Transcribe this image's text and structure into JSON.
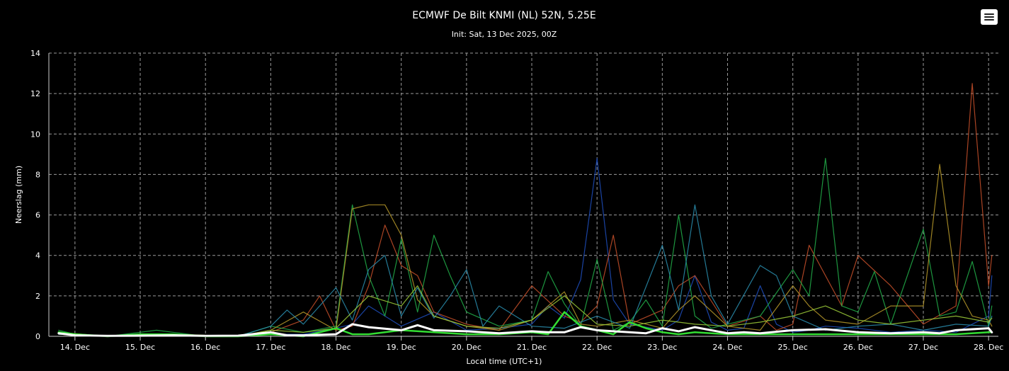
{
  "chart_data": {
    "type": "line",
    "title": "ECMWF De Bilt KNMI (NL) 52N, 5.25E",
    "subtitle": "Init: Sat, 13 Dec 2025, 00Z",
    "xlabel": "Local time (UTC+1)",
    "ylabel": "Neerslag (mm)",
    "x_tick_labels": [
      "14. Dec",
      "15. Dec",
      "16. Dec",
      "17. Dec",
      "18. Dec",
      "19. Dec",
      "20. Dec",
      "21. Dec",
      "22. Dec",
      "23. Dec",
      "24. Dec",
      "25. Dec",
      "26. Dec",
      "27. Dec",
      "28. Dec"
    ],
    "y_tick_labels": [
      "0",
      "2",
      "4",
      "6",
      "8",
      "10",
      "12",
      "14"
    ],
    "ylim": [
      0,
      14
    ],
    "xlim_days": [
      13.6,
      28.15
    ],
    "grid": true,
    "legend": "none",
    "background": "#000000",
    "series": [
      {
        "color": "#1f4fbf",
        "days": [
          13.75,
          14.5,
          15.5,
          16.5,
          17.0,
          17.5,
          18.0,
          18.25,
          18.5,
          19.0,
          19.5,
          20.0,
          20.5,
          21.0,
          21.25,
          21.5,
          21.75,
          22.0,
          22.25,
          22.5,
          23.0,
          23.25,
          23.5,
          23.75,
          24.0,
          24.25,
          24.5,
          24.75,
          25.0,
          25.25,
          25.5,
          26.0,
          26.5,
          27.0,
          27.5,
          28.0,
          28.05
        ],
        "values": [
          0.1,
          0,
          0,
          0,
          0.1,
          0.1,
          0.4,
          0.6,
          1.5,
          0.5,
          1.2,
          0.3,
          0.4,
          0.6,
          1.5,
          0.9,
          2.8,
          8.8,
          1.8,
          0.6,
          0.3,
          0.8,
          3.0,
          0.7,
          0.3,
          0.4,
          2.5,
          0.6,
          0.2,
          0.3,
          0.5,
          0.4,
          0.2,
          0.3,
          0.2,
          1.0,
          3.0
        ]
      },
      {
        "color": "#c8502a",
        "days": [
          13.75,
          14.5,
          15.5,
          16.5,
          17.0,
          17.5,
          17.75,
          18.0,
          18.25,
          18.5,
          18.75,
          19.0,
          19.25,
          19.5,
          20.0,
          20.5,
          21.0,
          21.5,
          21.75,
          22.0,
          22.25,
          22.5,
          23.0,
          23.25,
          23.5,
          24.0,
          24.5,
          24.75,
          25.0,
          25.25,
          25.5,
          25.75,
          26.0,
          26.5,
          27.0,
          27.5,
          27.75,
          28.0,
          28.05
        ],
        "values": [
          0.1,
          0,
          0,
          0,
          0.2,
          0.8,
          2.0,
          0.3,
          0.5,
          2.5,
          5.5,
          3.5,
          3.0,
          1.2,
          0.6,
          0.3,
          2.5,
          1.0,
          0.7,
          1.5,
          5.0,
          0.6,
          1.3,
          2.5,
          3.0,
          0.5,
          1.0,
          0.3,
          0.6,
          4.5,
          3.0,
          1.5,
          4.0,
          2.5,
          0.6,
          1.5,
          12.5,
          2.5,
          4.0
        ]
      },
      {
        "color": "#22b04a",
        "days": [
          13.75,
          14.0,
          14.5,
          15.0,
          15.25,
          15.5,
          16.0,
          16.5,
          17.0,
          17.5,
          18.0,
          18.25,
          18.5,
          18.75,
          19.0,
          19.25,
          19.5,
          19.75,
          20.0,
          20.5,
          21.0,
          21.25,
          21.5,
          21.75,
          22.0,
          22.25,
          22.5,
          22.75,
          23.0,
          23.25,
          23.5,
          23.75,
          24.0,
          24.5,
          25.0,
          25.25,
          25.5,
          25.75,
          26.0,
          26.25,
          26.5,
          27.0,
          27.25,
          27.5,
          27.75,
          28.0,
          28.05
        ],
        "values": [
          0.3,
          0.1,
          0,
          0.2,
          0.3,
          0.2,
          0,
          0,
          0.5,
          0.2,
          0.5,
          6.5,
          3.0,
          1.0,
          4.8,
          1.2,
          5.0,
          3.0,
          1.2,
          0.5,
          0.8,
          3.2,
          1.6,
          0.5,
          3.8,
          0.3,
          0.7,
          1.8,
          0.5,
          6.0,
          1.0,
          0.4,
          0.6,
          1.0,
          3.3,
          2.0,
          8.8,
          1.5,
          1.2,
          3.2,
          0.6,
          5.3,
          1.0,
          1.2,
          3.7,
          0.5,
          1.5
        ]
      },
      {
        "color": "#b89a2a",
        "days": [
          13.75,
          14.5,
          15.5,
          16.5,
          17.0,
          17.5,
          18.0,
          18.25,
          18.5,
          18.75,
          19.0,
          19.25,
          19.5,
          20.0,
          20.5,
          21.0,
          21.25,
          21.5,
          21.75,
          22.0,
          22.5,
          23.0,
          23.25,
          23.5,
          24.0,
          24.5,
          25.0,
          25.25,
          25.5,
          26.0,
          26.5,
          27.0,
          27.25,
          27.5,
          27.75,
          28.0,
          28.05
        ],
        "values": [
          0.1,
          0,
          0,
          0,
          0.3,
          1.2,
          0.3,
          6.3,
          6.5,
          6.5,
          5.0,
          1.8,
          1.0,
          0.5,
          0.3,
          0.8,
          1.5,
          2.2,
          0.6,
          0.5,
          0.8,
          0.4,
          1.3,
          2.0,
          0.5,
          0.3,
          2.5,
          1.5,
          0.8,
          0.6,
          1.5,
          1.5,
          8.5,
          2.5,
          1.0,
          0.8,
          0.5
        ]
      },
      {
        "color": "#2a8fb0",
        "days": [
          13.75,
          14.5,
          15.5,
          16.5,
          17.0,
          17.25,
          17.5,
          18.0,
          18.25,
          18.5,
          18.75,
          19.0,
          19.25,
          19.5,
          19.75,
          20.0,
          20.25,
          20.5,
          21.0,
          21.5,
          22.0,
          22.5,
          23.0,
          23.25,
          23.5,
          23.75,
          24.0,
          24.5,
          24.75,
          25.0,
          25.5,
          26.0,
          26.5,
          27.0,
          27.5,
          28.0,
          28.05
        ],
        "values": [
          0.1,
          0,
          0,
          0,
          0.5,
          1.3,
          0.6,
          2.4,
          0.8,
          3.3,
          4.0,
          1.0,
          2.4,
          0.9,
          2.0,
          3.3,
          0.5,
          1.5,
          0.5,
          0.4,
          1.0,
          0.4,
          4.5,
          1.3,
          6.5,
          2.0,
          0.6,
          3.5,
          3.0,
          1.0,
          0.3,
          0.5,
          0.6,
          0.3,
          0.6,
          0.5,
          1.0
        ]
      },
      {
        "color": "#9fcf3a",
        "days": [
          13.75,
          14.5,
          15.5,
          16.5,
          17.0,
          17.5,
          18.0,
          18.5,
          19.0,
          19.25,
          19.5,
          20.0,
          20.5,
          21.0,
          21.5,
          22.0,
          22.5,
          23.0,
          23.5,
          24.0,
          24.5,
          25.0,
          25.5,
          26.0,
          26.5,
          27.0,
          27.5,
          28.0,
          28.05
        ],
        "values": [
          0.2,
          0,
          0.1,
          0,
          0.3,
          0.2,
          0.4,
          2.0,
          1.5,
          2.5,
          1.0,
          0.5,
          0.4,
          0.8,
          2.0,
          0.6,
          0.5,
          0.8,
          0.6,
          0.5,
          0.7,
          1.0,
          1.5,
          0.8,
          0.6,
          0.8,
          1.0,
          0.7,
          0.9
        ]
      },
      {
        "color": "#33dd33",
        "days": [
          13.75,
          14.0,
          14.5,
          15.0,
          15.5,
          16.0,
          16.5,
          17.0,
          17.5,
          18.0,
          18.25,
          18.5,
          19.0,
          19.5,
          20.0,
          20.5,
          21.0,
          21.25,
          21.5,
          21.75,
          22.0,
          22.25,
          22.5,
          22.75,
          23.0,
          23.25,
          23.5,
          24.0,
          24.5,
          25.0,
          25.5,
          26.0,
          26.5,
          27.0,
          27.5,
          28.0,
          28.05
        ],
        "values": [
          0.2,
          0.1,
          0,
          0.1,
          0.1,
          0,
          0,
          0.1,
          0,
          0.4,
          0.1,
          0.1,
          0.3,
          0.2,
          0.1,
          0.1,
          0.2,
          0.1,
          1.2,
          0.5,
          0.3,
          0.1,
          0.7,
          0.4,
          0.2,
          0.1,
          0.2,
          0.1,
          0.1,
          0.1,
          0.1,
          0.1,
          0.1,
          0.1,
          0.1,
          0.2,
          0.2
        ]
      },
      {
        "color": "#ffffff",
        "days": [
          13.75,
          14.0,
          14.5,
          15.0,
          15.5,
          16.0,
          16.5,
          17.0,
          17.25,
          17.5,
          18.0,
          18.25,
          18.5,
          19.0,
          19.25,
          19.5,
          20.0,
          20.5,
          21.0,
          21.25,
          21.5,
          21.75,
          22.0,
          22.25,
          22.5,
          22.75,
          23.0,
          23.25,
          23.5,
          24.0,
          24.25,
          24.5,
          25.0,
          25.5,
          26.0,
          26.5,
          27.0,
          27.25,
          27.5,
          27.75,
          28.0,
          28.05
        ],
        "values": [
          0.15,
          0.05,
          0.02,
          0.03,
          0.05,
          0.02,
          0.03,
          0.2,
          0.05,
          0.05,
          0.1,
          0.6,
          0.45,
          0.3,
          0.55,
          0.3,
          0.25,
          0.15,
          0.25,
          0.2,
          0.2,
          0.45,
          0.3,
          0.25,
          0.2,
          0.15,
          0.4,
          0.25,
          0.45,
          0.15,
          0.2,
          0.15,
          0.3,
          0.35,
          0.2,
          0.15,
          0.2,
          0.15,
          0.3,
          0.35,
          0.4,
          0.2
        ]
      }
    ]
  }
}
